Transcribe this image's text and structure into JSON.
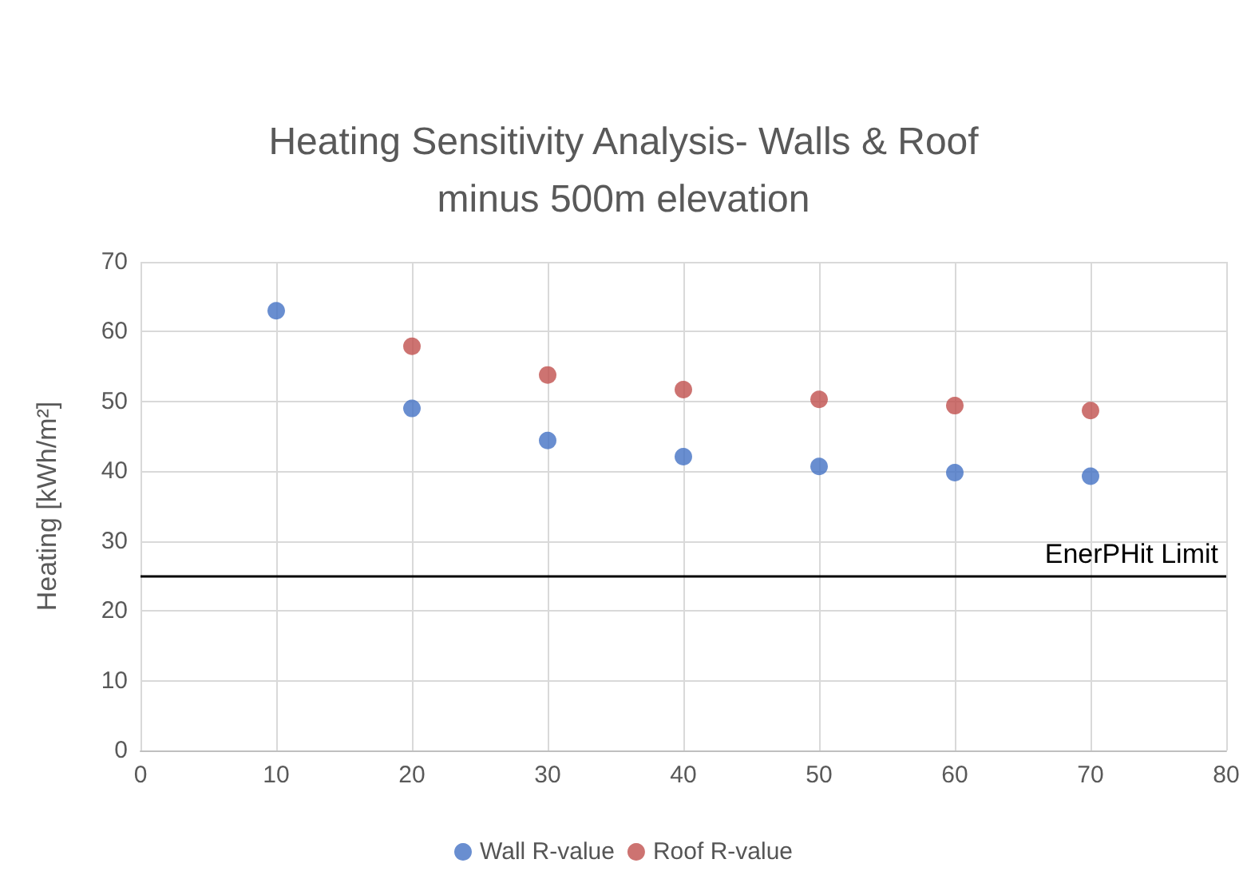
{
  "chart_data": {
    "type": "scatter",
    "title": "Heating Sensitivity Analysis- Walls & Roof\nminus 500m elevation",
    "ylabel": "Heating [kWh/m²]",
    "series": [
      {
        "name": "Wall R-value",
        "color": "#4472c4",
        "x": [
          10,
          20,
          30,
          40,
          50,
          60,
          70
        ],
        "values": [
          63,
          49,
          44.4,
          42.1,
          40.7,
          39.8,
          39.3
        ]
      },
      {
        "name": "Roof R-value",
        "color": "#c0504d",
        "x": [
          20,
          30,
          40,
          50,
          60,
          70
        ],
        "values": [
          57.9,
          53.8,
          51.7,
          50.3,
          49.4,
          48.7
        ]
      }
    ],
    "xlim": [
      0,
      80
    ],
    "xticks": [
      0,
      10,
      20,
      30,
      40,
      50,
      60,
      70,
      80
    ],
    "ylim": [
      0,
      70
    ],
    "yticks": [
      0,
      10,
      20,
      30,
      40,
      50,
      60,
      70
    ],
    "ref_lines": [
      {
        "axis": "y",
        "value": 25,
        "label": "EnerPHit Limit",
        "color": "#000000"
      }
    ],
    "grid": true,
    "legend": "bottom",
    "marker": "circle"
  }
}
